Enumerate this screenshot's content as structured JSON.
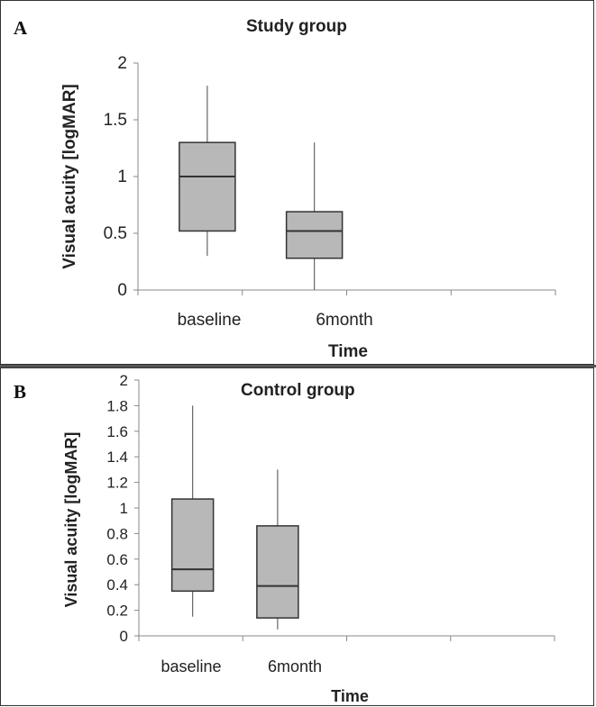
{
  "chart_data": [
    {
      "type": "box",
      "panel_label": "A",
      "title": "Study group",
      "xlabel": "Time",
      "ylabel": "Visual acuity [logMAR]",
      "ylim": [
        0,
        2
      ],
      "yticks": [
        "0",
        "0.5",
        "1",
        "1.5",
        "2"
      ],
      "categories": [
        "baseline",
        "6month"
      ],
      "boxes": [
        {
          "category": "baseline",
          "min": 0.3,
          "q1": 0.52,
          "median": 1.0,
          "q3": 1.3,
          "max": 1.8
        },
        {
          "category": "6month",
          "min": 0.0,
          "q1": 0.28,
          "median": 0.52,
          "q3": 0.69,
          "max": 1.3
        }
      ],
      "grid": false,
      "box_color": "#b8b8b8"
    },
    {
      "type": "box",
      "panel_label": "B",
      "title": "Control group",
      "xlabel": "Time",
      "ylabel": "Visual acuity [logMAR]",
      "ylim": [
        0,
        2
      ],
      "yticks": [
        "0",
        "0.2",
        "0.4",
        "0.6",
        "0.8",
        "1",
        "1.2",
        "1.4",
        "1.6",
        "1.8",
        "2"
      ],
      "categories": [
        "baseline",
        "6month"
      ],
      "boxes": [
        {
          "category": "baseline",
          "min": 0.15,
          "q1": 0.35,
          "median": 0.52,
          "q3": 1.07,
          "max": 1.8
        },
        {
          "category": "6month",
          "min": 0.05,
          "q1": 0.14,
          "median": 0.39,
          "q3": 0.86,
          "max": 1.3
        }
      ],
      "grid": false,
      "box_color": "#b8b8b8"
    }
  ]
}
